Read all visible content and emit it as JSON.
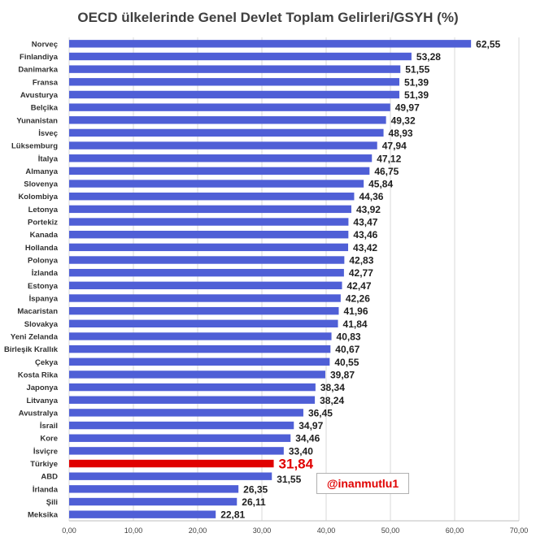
{
  "chart_data": {
    "type": "bar",
    "orientation": "horizontal",
    "title": "OECD ülkelerinde Genel Devlet Toplam Gelirleri/GSYH (%)",
    "categories": [
      "Norveç",
      "Finlandiya",
      "Danimarka",
      "Fransa",
      "Avusturya",
      "Belçika",
      "Yunanistan",
      "İsveç",
      "Lüksemburg",
      "İtalya",
      "Almanya",
      "Slovenya",
      "Kolombiya",
      "Letonya",
      "Portekiz",
      "Kanada",
      "Hollanda",
      "Polonya",
      "İzlanda",
      "Estonya",
      "İspanya",
      "Macaristan",
      "Slovakya",
      "Yeni Zelanda",
      "Birleşik Krallık",
      "Çekya",
      "Kosta Rika",
      "Japonya",
      "Litvanya",
      "Avustralya",
      "İsrail",
      "Kore",
      "İsviçre",
      "Türkiye",
      "ABD",
      "İrlanda",
      "Şili",
      "Meksika"
    ],
    "values": [
      62.55,
      53.28,
      51.55,
      51.39,
      51.39,
      49.97,
      49.32,
      48.93,
      47.94,
      47.12,
      46.75,
      45.84,
      44.36,
      43.92,
      43.47,
      43.46,
      43.42,
      42.83,
      42.77,
      42.47,
      42.26,
      41.96,
      41.84,
      40.83,
      40.67,
      40.55,
      39.87,
      38.34,
      38.24,
      36.45,
      34.97,
      34.46,
      33.4,
      31.84,
      31.55,
      26.35,
      26.11,
      22.81
    ],
    "value_labels": [
      "62,55",
      "53,28",
      "51,55",
      "51,39",
      "51,39",
      "49,97",
      "49,32",
      "48,93",
      "47,94",
      "47,12",
      "46,75",
      "45,84",
      "44,36",
      "43,92",
      "43,47",
      "43,46",
      "43,42",
      "42,83",
      "42,77",
      "42,47",
      "42,26",
      "41,96",
      "41,84",
      "40,83",
      "40,67",
      "40,55",
      "39,87",
      "38,34",
      "38,24",
      "36,45",
      "34,97",
      "34,46",
      "33,40",
      "31,84",
      "31,55",
      "26,35",
      "26,11",
      "22,81"
    ],
    "highlight": "Türkiye",
    "xlim": [
      0,
      70
    ],
    "x_ticks": [
      0,
      10,
      20,
      30,
      40,
      50,
      60,
      70
    ],
    "x_tick_labels": [
      "0,00",
      "10,00",
      "20,00",
      "30,00",
      "40,00",
      "50,00",
      "60,00",
      "70,00"
    ],
    "grid": true,
    "colors": {
      "bar": "#4f5fd6",
      "highlight": "#e00000",
      "grid": "#d9d9d9"
    }
  },
  "watermark": "@inanmutlu1"
}
